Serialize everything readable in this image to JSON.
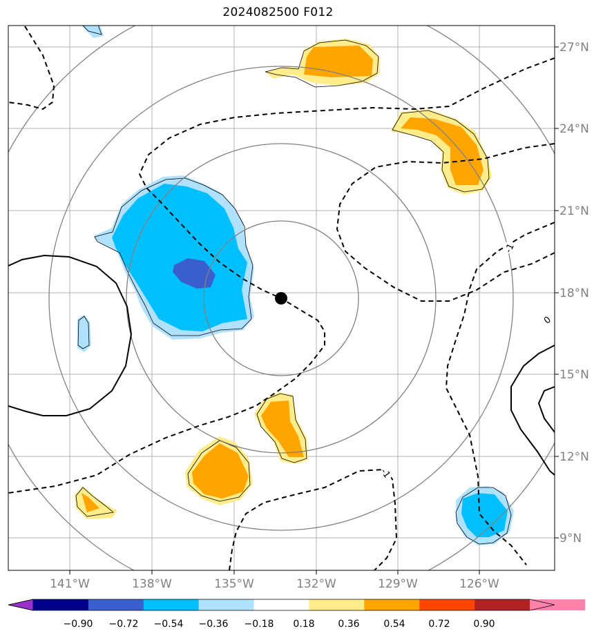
{
  "title": "2024082500 F012",
  "colors": {
    "grid": "#b0b0b0",
    "range_ring": "#808080",
    "tick_text": "#808080",
    "contour": "#000000",
    "center_marker": "#000000"
  },
  "axes": {
    "lon_labels": [
      "141°W",
      "138°W",
      "135°W",
      "132°W",
      "129°W",
      "126°W"
    ],
    "lat_labels": [
      "27°N",
      "24°N",
      "21°N",
      "18°N",
      "15°N",
      "12°N",
      "9°N"
    ]
  },
  "contour_labels": {
    "neg_one": "-1",
    "zero": "0"
  },
  "colorbar": {
    "colors": [
      "#9932cc",
      "#00008b",
      "#3a5fcd",
      "#00bfff",
      "#b0e2ff",
      "#ffffff",
      "#ffec8b",
      "#ffa500",
      "#ff4500",
      "#b22222",
      "#ff82ab"
    ],
    "tick_labels": [
      "−0.90",
      "−0.72",
      "−0.54",
      "−0.36",
      "−0.18",
      "0.18",
      "0.36",
      "0.54",
      "0.72",
      "0.90"
    ]
  }
}
